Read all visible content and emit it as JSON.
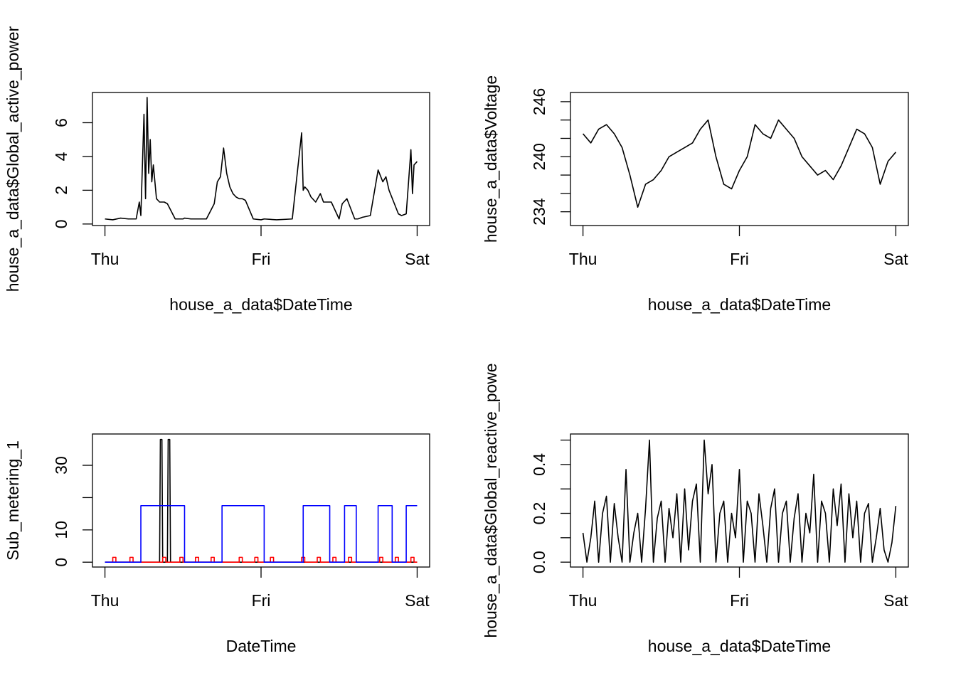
{
  "chart_data": [
    {
      "type": "line",
      "xlabel": "house_a_data$DateTime",
      "ylabel": "house_a_data$Global_active_power",
      "color": "#000000",
      "xlim": [
        -0.08,
        2.08
      ],
      "xticks": [
        {
          "value": 0,
          "label": "Thu"
        },
        {
          "value": 1,
          "label": "Fri"
        },
        {
          "value": 2,
          "label": "Sat"
        }
      ],
      "ylim": [
        -0.09,
        7.79
      ],
      "yticks": [
        0,
        2,
        4,
        6
      ],
      "x": [
        0,
        0.05,
        0.1,
        0.15,
        0.2,
        0.22,
        0.23,
        0.25,
        0.26,
        0.27,
        0.28,
        0.29,
        0.3,
        0.31,
        0.32,
        0.33,
        0.34,
        0.35,
        0.36,
        0.38,
        0.4,
        0.45,
        0.5,
        0.51,
        0.55,
        0.6,
        0.65,
        0.7,
        0.72,
        0.74,
        0.76,
        0.78,
        0.8,
        0.82,
        0.84,
        0.86,
        0.88,
        0.9,
        0.95,
        1.0,
        1.02,
        1.1,
        1.2,
        1.26,
        1.27,
        1.28,
        1.3,
        1.32,
        1.35,
        1.38,
        1.4,
        1.45,
        1.5,
        1.52,
        1.55,
        1.6,
        1.62,
        1.65,
        1.7,
        1.75,
        1.78,
        1.8,
        1.82,
        1.85,
        1.88,
        1.9,
        1.93,
        1.96,
        1.97,
        1.98,
        2.0
      ],
      "values": [
        0.3,
        0.25,
        0.35,
        0.3,
        0.3,
        1.3,
        0.5,
        6.5,
        1.5,
        7.5,
        3,
        5,
        2.5,
        3.5,
        2.5,
        1.5,
        1.4,
        1.3,
        1.3,
        1.3,
        1.2,
        0.3,
        0.3,
        0.35,
        0.3,
        0.3,
        0.3,
        1.2,
        2.5,
        2.8,
        4.5,
        3,
        2.2,
        1.8,
        1.6,
        1.5,
        1.5,
        1.4,
        0.3,
        0.25,
        0.3,
        0.25,
        0.3,
        5.4,
        2,
        2.2,
        2.0,
        1.6,
        1.3,
        1.8,
        1.3,
        1.3,
        0.3,
        1.2,
        1.5,
        0.3,
        0.3,
        0.4,
        0.5,
        3.2,
        2.5,
        2.8,
        2.0,
        1.3,
        0.6,
        0.5,
        0.6,
        4.4,
        1.8,
        3.5,
        3.7
      ]
    },
    {
      "type": "line",
      "xlabel": "house_a_data$DateTime",
      "ylabel": "house_a_data$Voltage",
      "color": "#000000",
      "xlim": [
        -0.08,
        2.08
      ],
      "xticks": [
        {
          "value": 0,
          "label": "Thu"
        },
        {
          "value": 1,
          "label": "Fri"
        },
        {
          "value": 2,
          "label": "Sat"
        }
      ],
      "ylim": [
        232.5,
        247.0
      ],
      "yticks": [
        234,
        240,
        246
      ],
      "yminor_ticks": [
        236,
        238,
        242,
        244
      ],
      "x": [
        0,
        0.05,
        0.1,
        0.15,
        0.2,
        0.25,
        0.3,
        0.35,
        0.4,
        0.45,
        0.5,
        0.55,
        0.6,
        0.65,
        0.7,
        0.75,
        0.8,
        0.85,
        0.9,
        0.95,
        1.0,
        1.05,
        1.1,
        1.15,
        1.2,
        1.25,
        1.3,
        1.35,
        1.4,
        1.45,
        1.5,
        1.55,
        1.6,
        1.65,
        1.7,
        1.75,
        1.8,
        1.85,
        1.9,
        1.95,
        2.0
      ],
      "values": [
        242.5,
        241.5,
        243,
        243.5,
        242.5,
        241,
        238,
        234.5,
        237,
        237.5,
        238.5,
        240,
        240.5,
        241,
        241.5,
        243,
        244,
        240,
        237,
        236.5,
        238.5,
        240,
        243.5,
        242.5,
        242,
        244,
        243,
        242,
        240,
        239,
        238,
        238.5,
        237.5,
        239,
        241,
        243,
        242.5,
        241,
        237,
        239.5,
        240.5
      ]
    },
    {
      "type": "line",
      "xlabel": "DateTime",
      "ylabel": "Sub_metering_1",
      "xlim": [
        -0.08,
        2.08
      ],
      "xticks": [
        {
          "value": 0,
          "label": "Thu"
        },
        {
          "value": 1,
          "label": "Fri"
        },
        {
          "value": 2,
          "label": "Sat"
        }
      ],
      "ylim": [
        -1.5,
        39.7
      ],
      "yticks": [
        0,
        10,
        30
      ],
      "yminor_ticks": [
        20
      ],
      "series": [
        {
          "color": "#000000",
          "x": [
            0,
            0.35,
            0.355,
            0.365,
            0.37,
            0.4,
            0.405,
            0.415,
            0.42,
            2.0
          ],
          "values": [
            0,
            0,
            38,
            38,
            0,
            0,
            38,
            38,
            0,
            0
          ]
        },
        {
          "color": "#ff0000",
          "x": [
            0,
            0.05,
            0.05,
            0.07,
            0.07,
            0.16,
            0.16,
            0.18,
            0.18,
            0.37,
            0.37,
            0.39,
            0.39,
            0.48,
            0.48,
            0.5,
            0.5,
            0.58,
            0.58,
            0.6,
            0.6,
            0.68,
            0.68,
            0.7,
            0.7,
            0.86,
            0.86,
            0.88,
            0.88,
            0.96,
            0.96,
            0.98,
            0.98,
            1.06,
            1.06,
            1.08,
            1.08,
            1.26,
            1.26,
            1.28,
            1.28,
            1.36,
            1.36,
            1.38,
            1.38,
            1.46,
            1.46,
            1.48,
            1.48,
            1.56,
            1.56,
            1.58,
            1.58,
            1.76,
            1.76,
            1.78,
            1.78,
            1.86,
            1.86,
            1.88,
            1.88,
            1.96,
            1.96,
            1.98,
            1.98,
            2.0
          ],
          "values": [
            0,
            0,
            1.5,
            1.5,
            0,
            0,
            1.5,
            1.5,
            0,
            0,
            1.5,
            1.5,
            0,
            0,
            1.5,
            1.5,
            0,
            0,
            1.5,
            1.5,
            0,
            0,
            1.5,
            1.5,
            0,
            0,
            1.5,
            1.5,
            0,
            0,
            1.5,
            1.5,
            0,
            0,
            1.5,
            1.5,
            0,
            0,
            1.5,
            1.5,
            0,
            0,
            1.5,
            1.5,
            0,
            0,
            1.5,
            1.5,
            0,
            0,
            1.5,
            1.5,
            0,
            0,
            1.5,
            1.5,
            0,
            0,
            1.5,
            1.5,
            0,
            0,
            1.5,
            1.5,
            0,
            0
          ]
        },
        {
          "color": "#0000ff",
          "x": [
            0,
            0.23,
            0.23,
            0.51,
            0.51,
            0.75,
            0.75,
            1.02,
            1.02,
            1.27,
            1.27,
            1.44,
            1.44,
            1.535,
            1.535,
            1.61,
            1.61,
            1.75,
            1.75,
            1.84,
            1.84,
            1.93,
            1.93,
            2.0
          ],
          "values": [
            0,
            0,
            17.5,
            17.5,
            0,
            0,
            17.5,
            17.5,
            0,
            0,
            17.5,
            17.5,
            0,
            0,
            17.5,
            17.5,
            0,
            0,
            17.5,
            17.5,
            0,
            0,
            17.5,
            17.5
          ]
        }
      ]
    },
    {
      "type": "line",
      "xlabel": "house_a_data$DateTime",
      "ylabel": "house_a_data$Global_reactive_powe",
      "color": "#000000",
      "xlim": [
        -0.08,
        2.08
      ],
      "xticks": [
        {
          "value": 0,
          "label": "Thu"
        },
        {
          "value": 1,
          "label": "Fri"
        },
        {
          "value": 2,
          "label": "Sat"
        }
      ],
      "ylim": [
        -0.02,
        0.525
      ],
      "yticks": [
        {
          "value": 0,
          "label": "0.0"
        },
        0.2,
        0.4
      ],
      "yminor_ticks": [
        0.1,
        0.3,
        0.5
      ],
      "x": [
        0,
        0.025,
        0.05,
        0.075,
        0.1,
        0.125,
        0.15,
        0.175,
        0.2,
        0.225,
        0.25,
        0.275,
        0.3,
        0.325,
        0.35,
        0.375,
        0.4,
        0.425,
        0.45,
        0.475,
        0.5,
        0.525,
        0.55,
        0.575,
        0.6,
        0.625,
        0.65,
        0.675,
        0.7,
        0.725,
        0.75,
        0.775,
        0.8,
        0.825,
        0.85,
        0.875,
        0.9,
        0.925,
        0.95,
        0.975,
        1.0,
        1.025,
        1.05,
        1.075,
        1.1,
        1.125,
        1.15,
        1.175,
        1.2,
        1.225,
        1.25,
        1.275,
        1.3,
        1.325,
        1.35,
        1.375,
        1.4,
        1.425,
        1.45,
        1.475,
        1.5,
        1.525,
        1.55,
        1.575,
        1.6,
        1.625,
        1.65,
        1.675,
        1.7,
        1.725,
        1.75,
        1.775,
        1.8,
        1.825,
        1.85,
        1.875,
        1.9,
        1.925,
        1.95,
        1.975,
        2.0
      ],
      "values": [
        0.12,
        0,
        0.1,
        0.25,
        0,
        0.2,
        0.27,
        0,
        0.24,
        0.1,
        0,
        0.38,
        0,
        0.12,
        0.2,
        0,
        0.22,
        0.5,
        0,
        0.18,
        0.25,
        0,
        0.22,
        0.1,
        0.28,
        0,
        0.3,
        0.05,
        0.25,
        0.32,
        0,
        0.5,
        0.28,
        0.4,
        0,
        0.2,
        0.25,
        0,
        0.2,
        0.1,
        0.38,
        0,
        0.25,
        0.2,
        0,
        0.28,
        0.15,
        0,
        0.22,
        0.3,
        0,
        0.2,
        0.25,
        0,
        0.18,
        0.28,
        0,
        0.2,
        0.12,
        0.36,
        0,
        0.25,
        0.2,
        0,
        0.3,
        0.15,
        0.32,
        0,
        0.28,
        0.1,
        0.25,
        0,
        0.2,
        0.24,
        0,
        0.1,
        0.22,
        0.05,
        0,
        0.08,
        0.23
      ]
    }
  ]
}
